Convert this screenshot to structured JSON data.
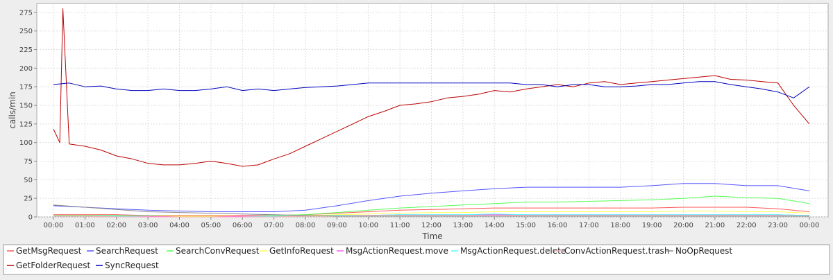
{
  "chart_data": {
    "type": "line",
    "title": "",
    "xlabel": "Time",
    "ylabel": "calls/min",
    "ylim": [
      0,
      287
    ],
    "y_ticks": [
      0,
      25,
      50,
      75,
      100,
      125,
      150,
      175,
      200,
      225,
      250,
      275
    ],
    "x_ticks": [
      "00:00",
      "01:00",
      "02:00",
      "03:00",
      "04:00",
      "05:00",
      "06:00",
      "07:00",
      "08:00",
      "09:00",
      "10:00",
      "11:00",
      "12:00",
      "13:00",
      "14:00",
      "15:00",
      "16:00",
      "17:00",
      "18:00",
      "19:00",
      "20:00",
      "21:00",
      "22:00",
      "23:00",
      "00:00"
    ],
    "x_range_hours": [
      0,
      24
    ],
    "grid": true,
    "legend_position": "bottom",
    "series": [
      {
        "name": "GetMsgRequest",
        "color": "#ff5555",
        "x": [
          0,
          1,
          2,
          3,
          4,
          5,
          6,
          7,
          8,
          9,
          10,
          11,
          12,
          13,
          14,
          15,
          16,
          17,
          18,
          19,
          20,
          21,
          22,
          23,
          24
        ],
        "y": [
          3,
          3,
          3,
          2,
          2,
          2,
          2,
          2,
          3,
          5,
          7,
          9,
          10,
          11,
          12,
          12,
          12,
          12,
          12,
          12,
          13,
          13,
          13,
          11,
          7
        ]
      },
      {
        "name": "SearchRequest",
        "color": "#5555ff",
        "x": [
          0,
          1,
          2,
          3,
          4,
          5,
          6,
          7,
          8,
          9,
          10,
          11,
          12,
          13,
          14,
          15,
          16,
          17,
          18,
          19,
          20,
          21,
          22,
          23,
          24
        ],
        "y": [
          15,
          13,
          11,
          9,
          8,
          7,
          7,
          7,
          9,
          15,
          22,
          28,
          32,
          35,
          38,
          40,
          40,
          40,
          40,
          42,
          45,
          45,
          42,
          42,
          35
        ]
      },
      {
        "name": "SearchConvRequest",
        "color": "#55ff55",
        "x": [
          0,
          1,
          2,
          3,
          4,
          5,
          6,
          7,
          8,
          9,
          10,
          11,
          12,
          13,
          14,
          15,
          16,
          17,
          18,
          19,
          20,
          21,
          22,
          23,
          24
        ],
        "y": [
          2,
          2,
          2,
          2,
          1,
          1,
          1,
          2,
          3,
          6,
          9,
          12,
          14,
          16,
          18,
          20,
          20,
          21,
          22,
          23,
          25,
          28,
          26,
          25,
          18
        ]
      },
      {
        "name": "GetInfoRequest",
        "color": "#ffff55",
        "x": [
          0,
          1,
          2,
          3,
          4,
          5,
          6,
          7,
          8,
          9,
          10,
          11,
          12,
          13,
          14,
          15,
          16,
          17,
          18,
          19,
          20,
          21,
          22,
          23,
          24
        ],
        "y": [
          1,
          1,
          1,
          1,
          1,
          1,
          1,
          1,
          2,
          3,
          4,
          5,
          6,
          6,
          7,
          7,
          7,
          7,
          7,
          7,
          8,
          8,
          7,
          7,
          5
        ]
      },
      {
        "name": "MsgActionRequest.move",
        "color": "#ff55ff",
        "x": [
          0,
          1,
          2,
          3,
          4,
          5,
          6,
          7,
          8,
          9,
          10,
          11,
          12,
          13,
          14,
          15,
          16,
          17,
          18,
          19,
          20,
          21,
          22,
          23,
          24
        ],
        "y": [
          1,
          1,
          1,
          1,
          0,
          0,
          1,
          1,
          1,
          2,
          2,
          3,
          3,
          3,
          3,
          3,
          3,
          3,
          3,
          3,
          3,
          3,
          3,
          3,
          2
        ]
      },
      {
        "name": "MsgActionRequest.delete",
        "color": "#55ffff",
        "x": [
          0,
          1,
          2,
          3,
          4,
          5,
          6,
          7,
          8,
          9,
          10,
          11,
          12,
          13,
          14,
          15,
          16,
          17,
          18,
          19,
          20,
          21,
          22,
          23,
          24
        ],
        "y": [
          1,
          1,
          1,
          0,
          0,
          0,
          0,
          1,
          1,
          2,
          2,
          3,
          3,
          3,
          4,
          3,
          3,
          3,
          3,
          3,
          3,
          3,
          3,
          3,
          2
        ]
      },
      {
        "name": "ConvActionRequest.trash",
        "color": "#ffaaaa",
        "x": [
          0,
          1,
          2,
          3,
          4,
          5,
          6,
          7,
          8,
          9,
          10,
          11,
          12,
          13,
          14,
          15,
          16,
          17,
          18,
          19,
          20,
          21,
          22,
          23,
          24
        ],
        "y": [
          1,
          1,
          0,
          0,
          0,
          0,
          0,
          0,
          1,
          1,
          2,
          2,
          2,
          2,
          2,
          2,
          2,
          2,
          2,
          2,
          2,
          2,
          2,
          2,
          1
        ]
      },
      {
        "name": "NoOpRequest",
        "color": "#888888",
        "x": [
          0,
          1,
          2,
          3,
          4,
          5,
          6,
          7,
          8,
          9,
          10,
          11,
          12,
          13,
          14,
          15,
          16,
          17,
          18,
          19,
          20,
          21,
          22,
          23,
          24
        ],
        "y": [
          16,
          13,
          10,
          7,
          6,
          5,
          4,
          3,
          2,
          1,
          1,
          1,
          1,
          1,
          1,
          1,
          1,
          1,
          1,
          1,
          1,
          1,
          1,
          1,
          1
        ]
      },
      {
        "name": "GetFolderRequest",
        "color": "#bb0000",
        "x": [
          0,
          0.2,
          0.3,
          0.5,
          1,
          1.5,
          2,
          2.5,
          3,
          3.5,
          4,
          4.5,
          5,
          5.5,
          6,
          6.5,
          7,
          7.5,
          8,
          8.5,
          9,
          9.5,
          10,
          10.5,
          11,
          11.5,
          12,
          12.5,
          13,
          13.5,
          14,
          14.5,
          15,
          15.5,
          16,
          16.5,
          17,
          17.5,
          18,
          18.5,
          19,
          19.5,
          20,
          20.5,
          21,
          21.5,
          22,
          22.5,
          23,
          23.5,
          24
        ],
        "y": [
          118,
          100,
          280,
          98,
          95,
          90,
          82,
          78,
          72,
          70,
          70,
          72,
          75,
          72,
          68,
          70,
          78,
          85,
          95,
          105,
          115,
          125,
          135,
          142,
          150,
          152,
          155,
          160,
          162,
          165,
          170,
          168,
          172,
          175,
          178,
          175,
          180,
          182,
          178,
          180,
          182,
          184,
          186,
          188,
          190,
          185,
          184,
          182,
          180,
          150,
          125
        ]
      },
      {
        "name": "SyncRequest",
        "color": "#0000bb",
        "x": [
          0,
          0.5,
          1,
          1.5,
          2,
          2.5,
          3,
          3.5,
          4,
          4.5,
          5,
          5.5,
          6,
          6.5,
          7,
          7.5,
          8,
          8.5,
          9,
          9.5,
          10,
          10.5,
          11,
          11.5,
          12,
          12.5,
          13,
          13.5,
          14,
          14.5,
          15,
          15.5,
          16,
          16.5,
          17,
          17.5,
          18,
          18.5,
          19,
          19.5,
          20,
          20.5,
          21,
          21.5,
          22,
          22.5,
          23,
          23.5,
          24
        ],
        "y": [
          178,
          180,
          175,
          176,
          172,
          170,
          170,
          172,
          170,
          170,
          172,
          175,
          170,
          172,
          170,
          172,
          174,
          175,
          176,
          178,
          180,
          180,
          180,
          180,
          180,
          180,
          180,
          180,
          180,
          180,
          178,
          178,
          175,
          178,
          178,
          175,
          175,
          176,
          178,
          178,
          180,
          182,
          182,
          178,
          175,
          172,
          168,
          160,
          175
        ]
      }
    ]
  }
}
